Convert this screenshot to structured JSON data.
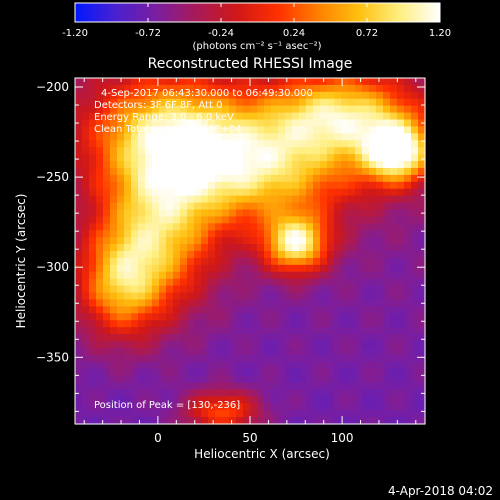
{
  "chart_data": {
    "type": "heatmap",
    "title": "Reconstructed RHESSI Image",
    "xlabel": "Heliocentric X (arcsec)",
    "ylabel": "Heliocentric Y (arcsec)",
    "xlim": [
      -45,
      145
    ],
    "ylim": [
      -387,
      -195
    ],
    "x_ticks": [
      0,
      50,
      100
    ],
    "y_ticks": [
      -200,
      -250,
      -300,
      -350
    ],
    "colorbar": {
      "label": "(photons cm⁻² s⁻¹ asec⁻²)",
      "range": [
        -1.2,
        1.2
      ],
      "ticks": [
        "-1.20",
        "-0.72",
        "-0.24",
        "0.24",
        "0.72",
        "1.20"
      ],
      "colors": [
        "#0018ff",
        "#4a20d0",
        "#7a1ea0",
        "#a81a58",
        "#d01818",
        "#ff3000",
        "#ff8000",
        "#ffc010",
        "#ffef80",
        "#ffffff"
      ]
    },
    "annotations": [
      "4-Sep-2017 06:43:30.000 to 06:49:30.000",
      "Detectors: 3F 6F 8F, Att 0",
      "Energy Range: 3.0 - 6.0 keV",
      "Clean     Total counts: 7.28E+04"
    ],
    "peak_label": "Position of Peak = [130,-236]",
    "peak": [
      130,
      -236
    ],
    "sources": [
      {
        "x": 130,
        "y": -236,
        "peak": 1.2,
        "sx": 13,
        "sy": 12
      },
      {
        "x": 75,
        "y": -287,
        "peak": 1.05,
        "sx": 12,
        "sy": 11
      },
      {
        "x": 55,
        "y": -245,
        "peak": 0.85,
        "sx": 38,
        "sy": 22
      },
      {
        "x": 5,
        "y": -225,
        "peak": 0.75,
        "sx": 30,
        "sy": 22
      },
      {
        "x": 0,
        "y": -280,
        "peak": 0.7,
        "sx": 22,
        "sy": 28
      },
      {
        "x": -20,
        "y": -310,
        "peak": 0.55,
        "sx": 16,
        "sy": 20
      },
      {
        "x": 100,
        "y": -215,
        "peak": 0.8,
        "sx": 28,
        "sy": 16
      },
      {
        "x": 35,
        "y": -380,
        "peak": 0.35,
        "sx": 14,
        "sy": 8
      }
    ],
    "background": {
      "base": -0.55,
      "gradient": -0.15
    }
  },
  "footer": {
    "timestamp": "4-Apr-2018 04:02"
  }
}
